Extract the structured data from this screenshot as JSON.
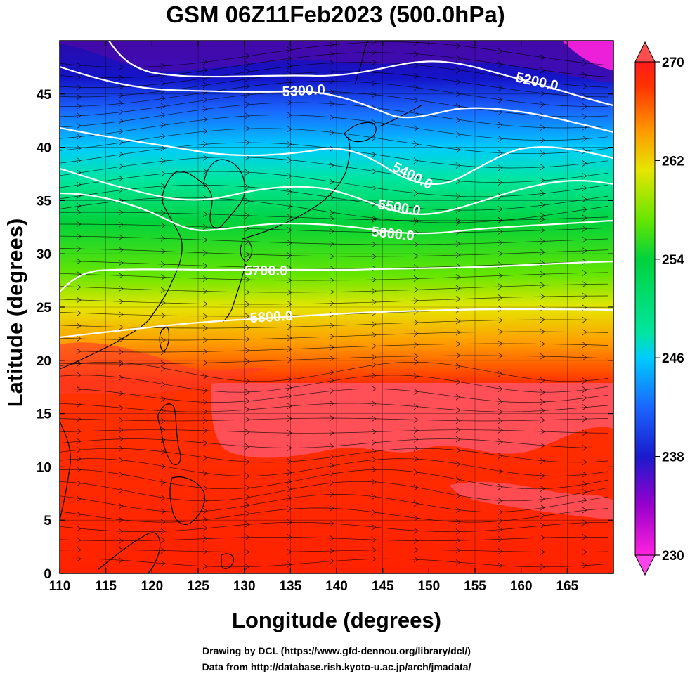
{
  "title": "GSM 06Z11Feb2023 (500.0hPa)",
  "x_axis": {
    "label": "Longitude (degrees)",
    "range": [
      110,
      170
    ],
    "ticks": [
      110,
      115,
      120,
      125,
      130,
      135,
      140,
      145,
      150,
      155,
      160,
      165
    ]
  },
  "y_axis": {
    "label": "Latitude  (degrees)",
    "range": [
      0,
      50
    ],
    "ticks": [
      0,
      5,
      10,
      15,
      20,
      25,
      30,
      35,
      40,
      45
    ]
  },
  "colorbar": {
    "range": [
      230,
      270
    ],
    "labels": [
      230,
      238,
      246,
      254,
      262,
      270
    ],
    "colors": [
      "#ff22dd",
      "#9900cc",
      "#1a1acc",
      "#1a66ff",
      "#00ccff",
      "#00e6a0",
      "#00d23c",
      "#66e600",
      "#e6e600",
      "#ff9900",
      "#ff3300",
      "#ff1a1a"
    ]
  },
  "contours": [
    {
      "label": "5200.0"
    },
    {
      "label": "5300.0"
    },
    {
      "label": "5400.0"
    },
    {
      "label": "5500.0"
    },
    {
      "label": "5600.0"
    },
    {
      "label": "5700.0"
    },
    {
      "label": "5800.0"
    }
  ],
  "credits": {
    "line1": "Drawing by DCL (https://www.gfd-dennou.org/library/dcl/)",
    "line2": "Data from http://database.rish.kyoto-u.ac.jp/arch/jmadata/"
  }
}
